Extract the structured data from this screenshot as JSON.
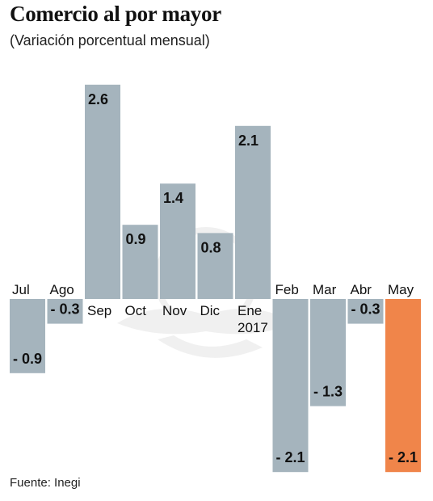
{
  "title": "Comercio al por mayor",
  "subtitle": "(Variación porcentual mensual)",
  "source": "Fuente: Inegi",
  "colors": {
    "bar": "#a5b4bd",
    "highlight": "#f0854a",
    "text": "#111111"
  },
  "chart_data": {
    "type": "bar",
    "categories": [
      "Jul",
      "Ago",
      "Sep",
      "Oct",
      "Nov",
      "Dic",
      "Ene",
      "Feb",
      "Mar",
      "Abr",
      "May"
    ],
    "year_label": {
      "category": "Ene",
      "text": "2017"
    },
    "values": [
      -0.9,
      -0.3,
      2.6,
      0.9,
      1.4,
      0.8,
      2.1,
      -2.1,
      -1.3,
      -0.3,
      -2.1
    ],
    "data_labels": [
      "- 0.9",
      "- 0.3",
      "2.6",
      "0.9",
      "1.4",
      "0.8",
      "2.1",
      "- 2.1",
      "- 1.3",
      "- 0.3",
      "- 2.1"
    ],
    "highlight_index": 10,
    "ylim": [
      -2.1,
      2.6
    ],
    "grid": false,
    "xlabel": "",
    "ylabel": ""
  }
}
